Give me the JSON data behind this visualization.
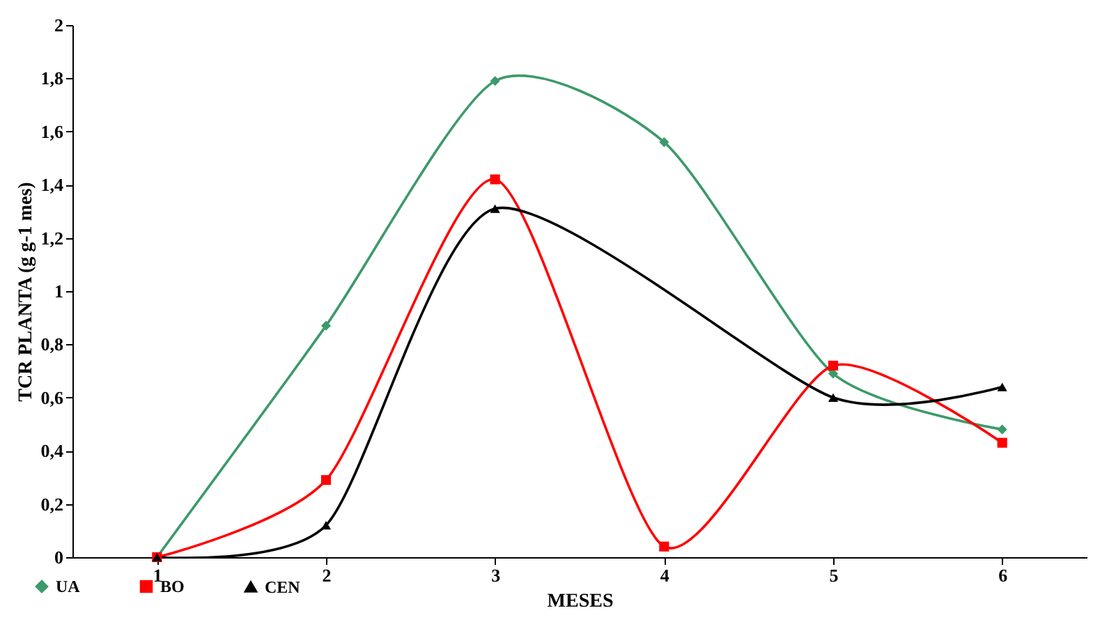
{
  "chart_data": {
    "type": "line",
    "xlabel": "MESES",
    "ylabel": "TCR PLANTA (g g-1 mes)",
    "categories": [
      "1",
      "2",
      "3",
      "4",
      "5",
      "6"
    ],
    "series": [
      {
        "name": "UA",
        "color": "#3c9a6a",
        "marker": "diamond",
        "values": [
          0,
          0.87,
          1.79,
          1.56,
          0.69,
          0.48
        ]
      },
      {
        "name": "BO",
        "color": "#ff0000",
        "marker": "square",
        "values": [
          0,
          0.29,
          1.42,
          0.04,
          0.72,
          0.43
        ]
      },
      {
        "name": "CEN",
        "color": "#000000",
        "marker": "triangle",
        "values": [
          0,
          0.12,
          1.31,
          null,
          0.6,
          0.64
        ]
      }
    ],
    "ylim": [
      0,
      2
    ],
    "yticks": [
      0,
      {
        "value": 0.2,
        "label": "0,2"
      },
      {
        "value": 0.4,
        "label": "0,4"
      },
      {
        "value": 0.6,
        "label": "0,6"
      },
      {
        "value": 0.8,
        "label": "0,8"
      },
      1,
      {
        "value": 1.2,
        "label": "1,2"
      },
      {
        "value": 1.4,
        "label": "1,4"
      },
      {
        "value": 1.6,
        "label": "1,6"
      },
      {
        "value": 1.8,
        "label": "1,8"
      },
      2
    ],
    "grid": false,
    "legend": "bottom left",
    "line_style": "solid"
  }
}
